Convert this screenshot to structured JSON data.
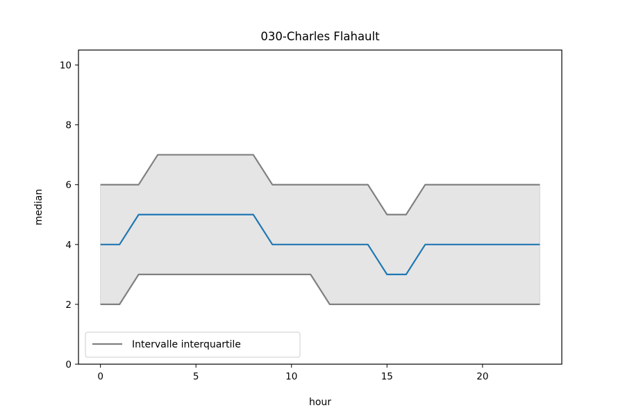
{
  "chart_data": {
    "type": "line",
    "title": "030-Charles Flahault",
    "xlabel": "hour",
    "ylabel": "median",
    "xlim": [
      -1.15,
      24.15
    ],
    "ylim": [
      0,
      10.5
    ],
    "xticks": [
      0,
      5,
      10,
      15,
      20
    ],
    "yticks": [
      0,
      2,
      4,
      6,
      8,
      10
    ],
    "x": [
      0,
      1,
      2,
      3,
      4,
      5,
      6,
      7,
      8,
      9,
      10,
      11,
      12,
      13,
      14,
      15,
      16,
      17,
      18,
      19,
      20,
      21,
      22,
      23
    ],
    "series": [
      {
        "key": "median",
        "color": "#1f77b4",
        "values": [
          4,
          4,
          5,
          5,
          5,
          5,
          5,
          5,
          5,
          4,
          4,
          4,
          4,
          4,
          4,
          3,
          3,
          4,
          4,
          4,
          4,
          4,
          4,
          4
        ]
      },
      {
        "key": "q3",
        "name": "Intervalle interquartile",
        "color": "#808080",
        "values": [
          6,
          6,
          6,
          7,
          7,
          7,
          7,
          7,
          7,
          6,
          6,
          6,
          6,
          6,
          6,
          5,
          5,
          6,
          6,
          6,
          6,
          6,
          6,
          6
        ]
      },
      {
        "key": "q1",
        "color": "#808080",
        "values": [
          2,
          2,
          3,
          3,
          3,
          3,
          3,
          3,
          3,
          3,
          3,
          3,
          2,
          2,
          2,
          2,
          2,
          2,
          2,
          2,
          2,
          2,
          2,
          2
        ]
      }
    ],
    "band": {
      "lower": "q1",
      "upper": "q3",
      "color": "#e5e5e5"
    },
    "legend": {
      "position": "lower-left",
      "entries": [
        "Intervalle interquartile"
      ]
    },
    "grid": false
  }
}
